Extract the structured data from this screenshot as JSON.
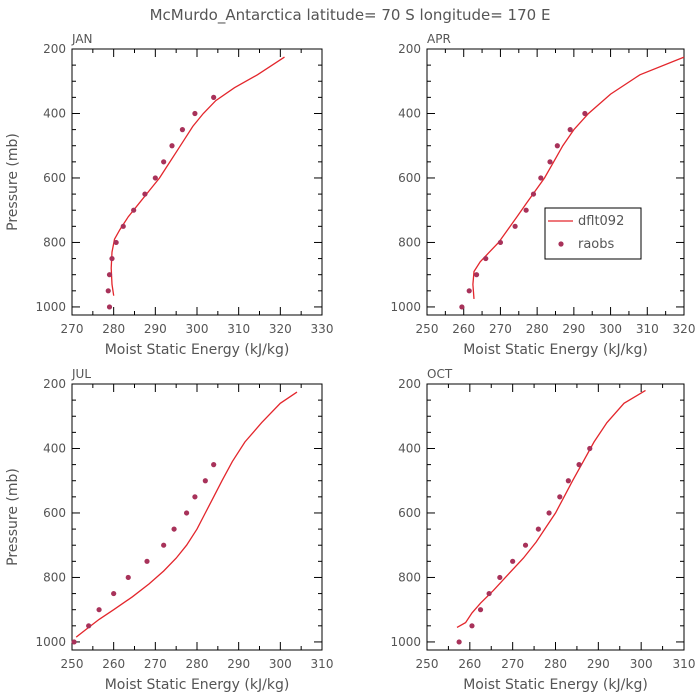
{
  "title": "McMurdo_Antarctica  latitude= 70 S longitude= 170 E",
  "colors": {
    "model_line": "#e3262c",
    "raobs_marker": "#a8325a",
    "axis": "#000000",
    "text": "#555555"
  },
  "legend": {
    "line_label": "dflt092",
    "marker_label": "raobs",
    "placement": "center-right of APR panel"
  },
  "chart_data": [
    {
      "type": "line",
      "panel": "JAN",
      "xlabel": "Moist Static Energy (kJ/kg)",
      "ylabel": "Pressure (mb)",
      "xlim": [
        270,
        330
      ],
      "ylim": [
        200,
        1025
      ],
      "y_inverted": true,
      "xticks": [
        270,
        280,
        290,
        300,
        310,
        320,
        330
      ],
      "yticks": [
        200,
        400,
        600,
        800,
        1000
      ],
      "series": [
        {
          "name": "dflt092",
          "style": "line",
          "x": [
            280.0,
            279.6,
            279.4,
            279.6,
            280.2,
            281.5,
            283.5,
            286.0,
            288.5,
            291.0,
            293.0,
            295.0,
            297.0,
            299.0,
            301.5,
            304.5,
            309.0,
            314.5,
            321.0
          ],
          "y": [
            965,
            930,
            880,
            830,
            790,
            760,
            720,
            680,
            640,
            600,
            560,
            520,
            480,
            440,
            400,
            360,
            320,
            280,
            225
          ]
        },
        {
          "name": "raobs",
          "style": "markers",
          "x": [
            279.0,
            278.7,
            279.0,
            279.6,
            280.6,
            282.3,
            284.8,
            287.5,
            290.0,
            292.0,
            294.0,
            296.5,
            299.5,
            304.0
          ],
          "y": [
            1000,
            950,
            900,
            850,
            800,
            750,
            700,
            650,
            600,
            550,
            500,
            450,
            400,
            350
          ]
        }
      ]
    },
    {
      "type": "line",
      "panel": "APR",
      "xlabel": "Moist Static Energy (kJ/kg)",
      "ylabel": "",
      "xlim": [
        250,
        320
      ],
      "ylim": [
        200,
        1025
      ],
      "y_inverted": true,
      "xticks": [
        250,
        260,
        270,
        280,
        290,
        300,
        310,
        320
      ],
      "yticks": [
        200,
        400,
        600,
        800,
        1000
      ],
      "series": [
        {
          "name": "dflt092",
          "style": "line",
          "x": [
            262.8,
            262.5,
            262.8,
            264.5,
            267.0,
            269.5,
            272.0,
            274.5,
            277.0,
            279.5,
            282.0,
            284.5,
            287.0,
            290.0,
            294.0,
            300.0,
            308.0,
            320.0
          ],
          "y": [
            975,
            930,
            890,
            860,
            830,
            800,
            760,
            720,
            680,
            640,
            600,
            550,
            500,
            450,
            400,
            340,
            280,
            225
          ]
        },
        {
          "name": "raobs",
          "style": "markers",
          "x": [
            259.5,
            261.5,
            263.5,
            266.0,
            270.0,
            274.0,
            277.0,
            279.0,
            281.0,
            283.5,
            285.5,
            289.0,
            293.0
          ],
          "y": [
            1000,
            950,
            900,
            850,
            800,
            750,
            700,
            650,
            600,
            550,
            500,
            450,
            400
          ]
        }
      ]
    },
    {
      "type": "line",
      "panel": "JUL",
      "xlabel": "Moist Static Energy (kJ/kg)",
      "ylabel": "Pressure (mb)",
      "xlim": [
        250,
        310
      ],
      "ylim": [
        200,
        1025
      ],
      "y_inverted": true,
      "xticks": [
        250,
        260,
        270,
        280,
        290,
        300,
        310
      ],
      "yticks": [
        200,
        400,
        600,
        800,
        1000
      ],
      "series": [
        {
          "name": "dflt092",
          "style": "line",
          "x": [
            251.0,
            253.5,
            256.5,
            260.0,
            264.5,
            268.5,
            272.0,
            275.0,
            277.5,
            280.0,
            282.0,
            284.0,
            286.0,
            288.5,
            291.5,
            295.5,
            300.0,
            304.0
          ],
          "y": [
            985,
            960,
            930,
            900,
            860,
            820,
            780,
            740,
            700,
            650,
            600,
            550,
            500,
            440,
            380,
            320,
            260,
            225
          ]
        },
        {
          "name": "raobs",
          "style": "markers",
          "x": [
            250.5,
            254.0,
            256.5,
            260.0,
            263.5,
            268.0,
            272.0,
            274.5,
            277.5,
            279.5,
            282.0,
            284.0
          ],
          "y": [
            1000,
            950,
            900,
            850,
            800,
            750,
            700,
            650,
            600,
            550,
            500,
            450
          ]
        }
      ]
    },
    {
      "type": "line",
      "panel": "OCT",
      "xlabel": "Moist Static Energy (kJ/kg)",
      "ylabel": "",
      "xlim": [
        250,
        310
      ],
      "ylim": [
        200,
        1025
      ],
      "y_inverted": true,
      "xticks": [
        250,
        260,
        270,
        280,
        290,
        300,
        310
      ],
      "yticks": [
        200,
        400,
        600,
        800,
        1000
      ],
      "series": [
        {
          "name": "dflt092",
          "style": "line",
          "x": [
            257.0,
            259.0,
            260.5,
            262.5,
            265.5,
            269.0,
            272.5,
            275.5,
            278.0,
            280.0,
            282.0,
            284.0,
            286.5,
            289.0,
            292.0,
            296.0,
            301.0
          ],
          "y": [
            955,
            940,
            910,
            880,
            840,
            790,
            740,
            690,
            640,
            600,
            550,
            500,
            440,
            380,
            320,
            260,
            220
          ]
        },
        {
          "name": "raobs",
          "style": "markers",
          "x": [
            257.5,
            260.5,
            262.5,
            264.5,
            267.0,
            270.0,
            273.0,
            276.0,
            278.5,
            281.0,
            283.0,
            285.5,
            288.0
          ],
          "y": [
            1000,
            950,
            900,
            850,
            800,
            750,
            700,
            650,
            600,
            550,
            500,
            450,
            400
          ]
        }
      ]
    }
  ]
}
